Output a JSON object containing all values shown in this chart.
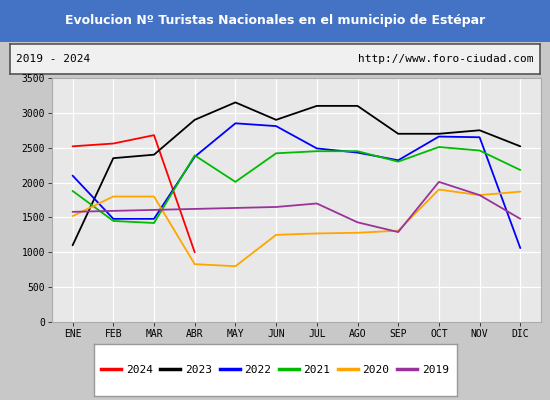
{
  "title": "Evolucion Nº Turistas Nacionales en el municipio de Estépar",
  "subtitle_left": "2019 - 2024",
  "subtitle_right": "http://www.foro-ciudad.com",
  "months": [
    "ENE",
    "FEB",
    "MAR",
    "ABR",
    "MAY",
    "JUN",
    "JUL",
    "AGO",
    "SEP",
    "OCT",
    "NOV",
    "DIC"
  ],
  "series_2024": [
    2520,
    2560,
    2680,
    1000,
    null,
    null,
    null,
    null,
    null,
    null,
    null,
    null
  ],
  "series_2023": [
    1100,
    2350,
    2400,
    2900,
    3150,
    2900,
    3100,
    3100,
    2700,
    2700,
    2750,
    2520
  ],
  "series_2022": [
    2100,
    1480,
    1480,
    2370,
    2850,
    2810,
    2490,
    2430,
    2320,
    2660,
    2650,
    1060
  ],
  "series_2021": [
    1880,
    1450,
    1420,
    2390,
    2010,
    2420,
    2450,
    2450,
    2300,
    2510,
    2460,
    2180
  ],
  "series_2020": [
    1520,
    1800,
    1800,
    830,
    800,
    1250,
    1270,
    1280,
    1310,
    1900,
    1820,
    1870
  ],
  "series_2019": [
    1580,
    null,
    null,
    null,
    null,
    1650,
    1700,
    1430,
    1290,
    2010,
    1820,
    1480
  ],
  "color_2024": "#ff0000",
  "color_2023": "#000000",
  "color_2022": "#0000ff",
  "color_2021": "#00bb00",
  "color_2020": "#ffa500",
  "color_2019": "#993399",
  "ylim_min": 0,
  "ylim_max": 3500,
  "yticks": [
    0,
    500,
    1000,
    1500,
    2000,
    2500,
    3000,
    3500
  ],
  "title_bg": "#4472c4",
  "title_color": "#ffffff",
  "plot_bg": "#e8e8e8",
  "outer_bg": "#c8c8c8",
  "header_bg": "#f0f0f0",
  "grid_color": "#ffffff",
  "legend_bg": "#ffffff",
  "legend_border": "#999999"
}
